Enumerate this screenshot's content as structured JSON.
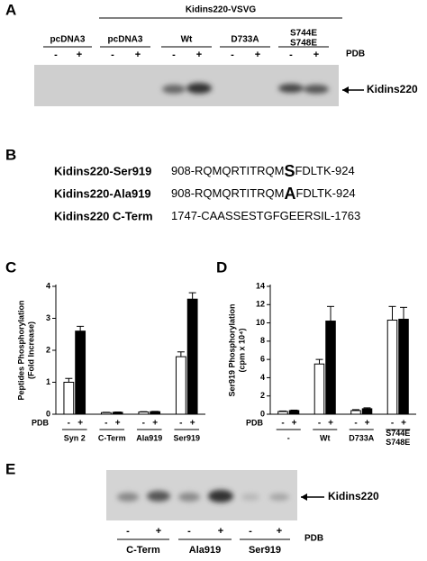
{
  "panel_a": {
    "letter": "A",
    "group_label": "Kidins220-VSVG",
    "lanes": [
      "pcDNA3",
      "pcDNA3",
      "Wt",
      "D733A",
      "S744E\nS748E"
    ],
    "signs": [
      "-",
      "+",
      "-",
      "+",
      "-",
      "+",
      "-",
      "+",
      "-",
      "+"
    ],
    "treatment": "PDB",
    "band_label": "Kidins220"
  },
  "panel_b": {
    "letter": "B",
    "rows": [
      {
        "name": "Kidins220-Ser919",
        "seq_start": "908-RQMQRTITRQM",
        "residue": "S",
        "seq_end": "FDLTK-924"
      },
      {
        "name": "Kidins220-Ala919",
        "seq_start": "908-RQMQRTITRQM",
        "residue": "A",
        "seq_end": "FDLTK-924"
      },
      {
        "name": "Kidins220 C-Term",
        "seq_start": "1747-CAASSESTGFGEERSIL-1763"
      }
    ]
  },
  "panel_c": {
    "letter": "C"
  },
  "panel_d": {
    "letter": "D"
  },
  "chart_data": [
    {
      "type": "bar",
      "ylabel": [
        "Peptides Phosphorylation",
        "(Fold Increase)"
      ],
      "row_label": "PDB",
      "categories": [
        "Syn 2",
        "C-Term",
        "Ala919",
        "Ser919"
      ],
      "series": [
        {
          "name": "-",
          "color": "#ffffff",
          "values": [
            1.0,
            0.05,
            0.07,
            1.8
          ],
          "errors": [
            0.12,
            0.01,
            0.01,
            0.15
          ]
        },
        {
          "name": "+",
          "color": "#000000",
          "values": [
            2.6,
            0.06,
            0.08,
            3.6
          ],
          "errors": [
            0.15,
            0.01,
            0.01,
            0.2
          ]
        }
      ],
      "ylim": [
        0,
        4
      ],
      "yticks": [
        0,
        1,
        2,
        3,
        4
      ]
    },
    {
      "type": "bar",
      "ylabel": [
        "Ser919 Phosphorylation",
        "(cpm x 10⁴)"
      ],
      "row_label": "PDB",
      "categories": [
        "-",
        "Wt",
        "D733A",
        "S744E\nS748E"
      ],
      "series": [
        {
          "name": "-",
          "color": "#ffffff",
          "values": [
            0.3,
            5.5,
            0.4,
            10.3
          ],
          "errors": [
            0.05,
            0.5,
            0.1,
            1.5
          ]
        },
        {
          "name": "+",
          "color": "#000000",
          "values": [
            0.4,
            10.2,
            0.6,
            10.4
          ],
          "errors": [
            0.05,
            1.6,
            0.1,
            1.3
          ]
        }
      ],
      "ylim": [
        0,
        14
      ],
      "yticks": [
        0,
        2,
        4,
        6,
        8,
        10,
        12,
        14
      ]
    }
  ],
  "panel_e": {
    "letter": "E",
    "signs": [
      "-",
      "+",
      "-",
      "+",
      "-",
      "+"
    ],
    "groups": [
      "C-Term",
      "Ala919",
      "Ser919"
    ],
    "treatment": "PDB",
    "band_label": "Kidins220"
  }
}
